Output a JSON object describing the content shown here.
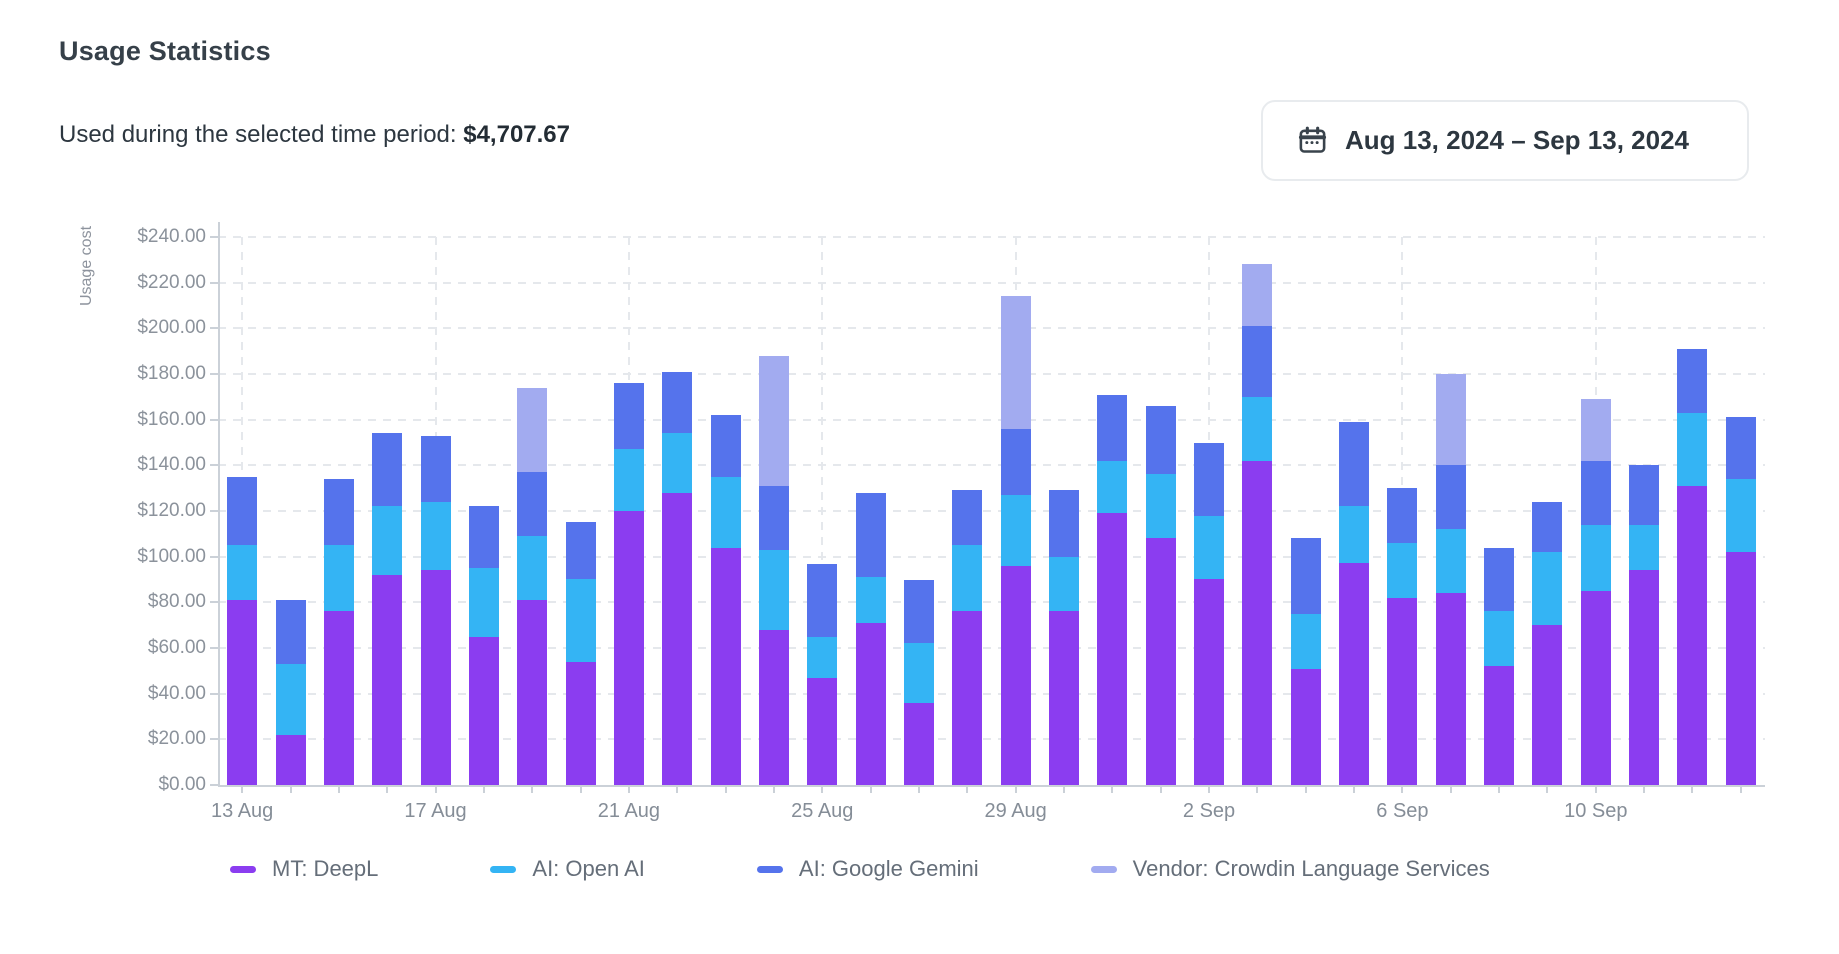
{
  "header": {
    "title": "Usage Statistics",
    "subtitle_label": "Used during the selected time period:",
    "subtitle_value": "$4,707.67"
  },
  "date_range_picker": {
    "icon": "calendar-icon",
    "value": "Aug 13, 2024 – Sep 13, 2024"
  },
  "chart_data": {
    "type": "bar",
    "stacked": true,
    "title": "",
    "xlabel": "",
    "ylabel": "Usage cost",
    "ylim": [
      0,
      240
    ],
    "ytick_step": 20,
    "ytick_labels": [
      "$0.00",
      "$20.00",
      "$40.00",
      "$60.00",
      "$80.00",
      "$100.00",
      "$120.00",
      "$140.00",
      "$160.00",
      "$180.00",
      "$200.00",
      "$220.00",
      "$240.00"
    ],
    "grid": "dashed",
    "legend_position": "bottom",
    "categories": [
      "13 Aug",
      "14 Aug",
      "15 Aug",
      "16 Aug",
      "17 Aug",
      "18 Aug",
      "19 Aug",
      "20 Aug",
      "21 Aug",
      "22 Aug",
      "23 Aug",
      "24 Aug",
      "25 Aug",
      "26 Aug",
      "27 Aug",
      "28 Aug",
      "29 Aug",
      "30 Aug",
      "31 Aug",
      "1 Sep",
      "2 Sep",
      "3 Sep",
      "4 Sep",
      "5 Sep",
      "6 Sep",
      "7 Sep",
      "8 Sep",
      "9 Sep",
      "10 Sep",
      "11 Sep",
      "12 Sep",
      "13 Sep"
    ],
    "xtick_labels_shown": [
      "13 Aug",
      "17 Aug",
      "21 Aug",
      "25 Aug",
      "29 Aug",
      "2 Sep",
      "6 Sep",
      "10 Sep"
    ],
    "series": [
      {
        "name": "MT: DeepL",
        "color": "#8b3df0",
        "values": [
          81,
          22,
          76,
          92,
          94,
          65,
          81,
          54,
          120,
          128,
          104,
          68,
          47,
          71,
          36,
          76,
          96,
          76,
          119,
          108,
          90,
          142,
          51,
          97,
          82,
          84,
          52,
          70,
          85,
          94,
          131,
          102
        ]
      },
      {
        "name": "AI: Open AI",
        "color": "#34b4f4",
        "values": [
          24,
          31,
          29,
          30,
          30,
          30,
          28,
          36,
          27,
          26,
          31,
          35,
          18,
          20,
          26,
          29,
          31,
          24,
          23,
          28,
          28,
          28,
          24,
          25,
          24,
          28,
          24,
          32,
          29,
          20,
          32,
          32
        ]
      },
      {
        "name": "AI: Google Gemini",
        "color": "#5573ec",
        "values": [
          30,
          28,
          29,
          32,
          29,
          27,
          28,
          25,
          29,
          27,
          27,
          28,
          32,
          37,
          28,
          24,
          29,
          29,
          29,
          30,
          32,
          31,
          33,
          37,
          24,
          28,
          28,
          22,
          28,
          26,
          28,
          27
        ]
      },
      {
        "name": "Vendor: Crowdin Language Services",
        "color": "#a2abf0",
        "values": [
          0,
          0,
          0,
          0,
          0,
          0,
          37,
          0,
          0,
          0,
          0,
          57,
          0,
          0,
          0,
          0,
          58,
          0,
          0,
          0,
          0,
          27,
          0,
          0,
          0,
          40,
          0,
          0,
          27,
          0,
          0,
          0
        ]
      }
    ]
  }
}
